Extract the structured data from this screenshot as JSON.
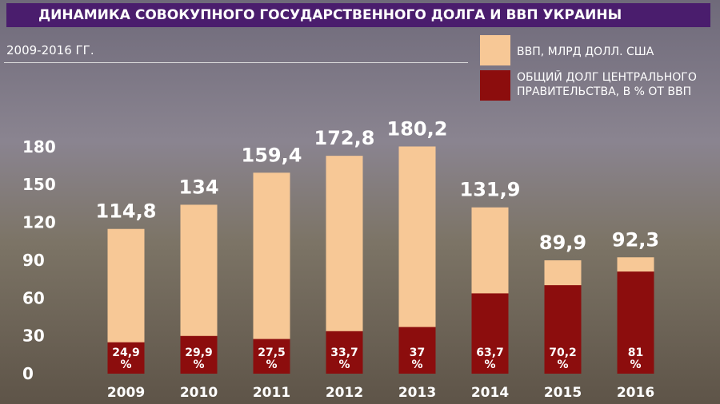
{
  "chart_data": {
    "type": "overlay-bar",
    "title": "ДИНАМИКА СОВОКУПНОГО ГОСУДАРСТВЕННОГО ДОЛГА И ВВП УКРАИНЫ",
    "subtitle": "2009-2016 ГГ.",
    "categories": [
      "2009",
      "2010",
      "2011",
      "2012",
      "2013",
      "2014",
      "2015",
      "2016"
    ],
    "series": [
      {
        "name": "ВВП, МЛРД ДОЛЛ. США",
        "color": "#f7c896",
        "values": [
          114.8,
          134,
          159.4,
          172.8,
          180.2,
          131.9,
          89.9,
          92.3
        ],
        "value_labels": [
          "114,8",
          "134",
          "159,4",
          "172,8",
          "180,2",
          "131,9",
          "89,9",
          "92,3"
        ]
      },
      {
        "name": "ОБЩИЙ ДОЛГ ЦЕНТРАЛЬНОГО ПРАВИТЕЛЬСТВА, В % ОТ ВВП",
        "color": "#8c0d0d",
        "values": [
          24.9,
          29.9,
          27.5,
          33.7,
          37,
          63.7,
          70.2,
          81
        ],
        "value_labels": [
          "24,9 %",
          "29,9 %",
          "27,5 %",
          "33,7 %",
          "37 %",
          "63,7 %",
          "70,2 %",
          "81 %"
        ]
      }
    ],
    "ylim": [
      0,
      190
    ],
    "yticks": [
      0,
      30,
      60,
      90,
      120,
      150,
      180
    ]
  }
}
